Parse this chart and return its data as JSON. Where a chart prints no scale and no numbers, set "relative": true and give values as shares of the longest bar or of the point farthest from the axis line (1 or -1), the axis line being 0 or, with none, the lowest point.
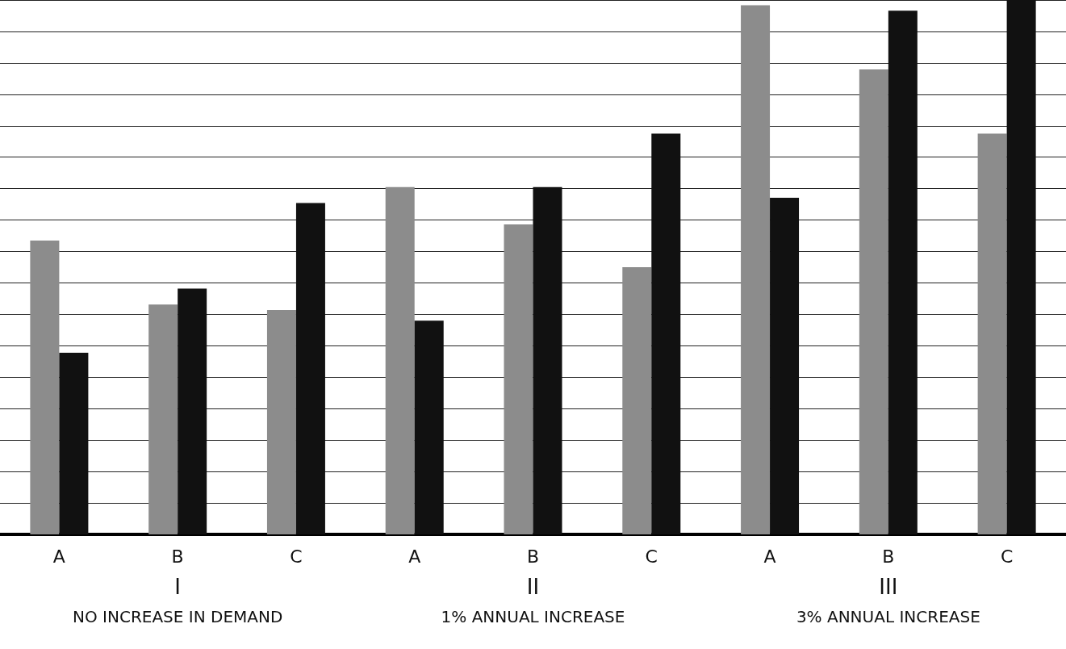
{
  "chart_data": {
    "type": "bar",
    "relative": true,
    "grid": true,
    "categories": [
      "A",
      "B",
      "C",
      "A",
      "B",
      "C",
      "A",
      "B",
      "C"
    ],
    "series": [
      {
        "color": "#8c8c8c",
        "values": [
          0.55,
          0.43,
          0.42,
          0.65,
          0.58,
          0.5,
          0.99,
          0.87,
          0.75
        ]
      },
      {
        "color": "#111111",
        "values": [
          0.34,
          0.46,
          0.62,
          0.4,
          0.65,
          0.75,
          0.63,
          0.98,
          1
        ]
      }
    ],
    "annotations": [
      "I",
      "NO INCREASE IN DEMAND",
      "II",
      "1% ANNUAL INCREASE",
      "III",
      "3% ANNUAL INCREASE"
    ]
  }
}
